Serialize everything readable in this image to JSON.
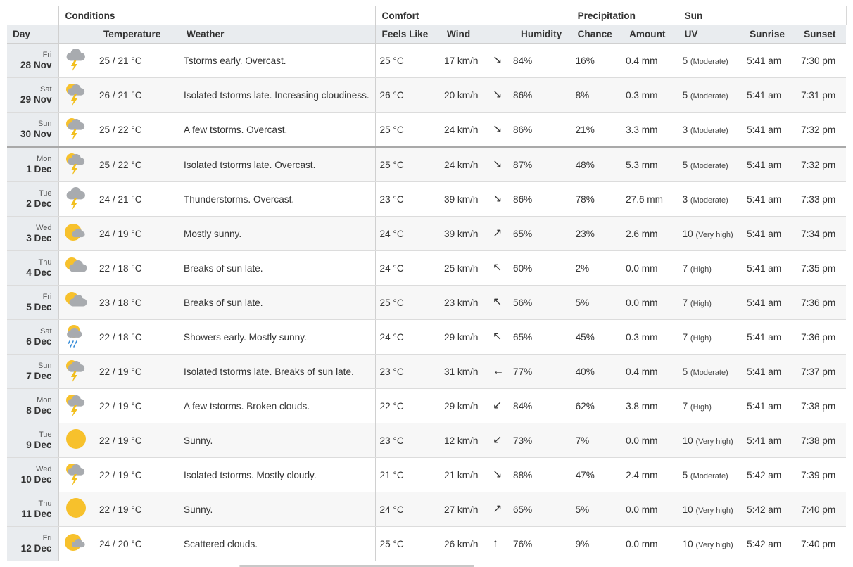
{
  "headers": {
    "day": "Day",
    "conditions": "Conditions",
    "comfort": "Comfort",
    "precipitation": "Precipitation",
    "sun": "Sun",
    "temperature": "Temperature",
    "weather": "Weather",
    "feels_like": "Feels Like",
    "wind": "Wind",
    "humidity": "Humidity",
    "chance": "Chance",
    "amount": "Amount",
    "uv": "UV",
    "sunrise": "Sunrise",
    "sunset": "Sunset"
  },
  "colors": {
    "sun": "#f7c12c",
    "cloud": "#a8abaf",
    "bolt": "#f2bf1e",
    "rain": "#3b8fd8"
  },
  "rows": [
    {
      "dayname": "Fri",
      "date": "28 Nov",
      "icon": "thunderstorm-cloud-icon",
      "temp": "25 / 21 °C",
      "weather": "Tstorms early. Overcast.",
      "feels": "25 °C",
      "wind": "17 km/h",
      "wind_dir": "↘",
      "humidity": "84%",
      "chance": "16%",
      "amount": "0.4 mm",
      "uv": "5",
      "uv_cat": "(Moderate)",
      "sunrise": "5:41 am",
      "sunset": "7:30 pm"
    },
    {
      "dayname": "Sat",
      "date": "29 Nov",
      "icon": "sun-thunderstorm-icon",
      "temp": "26 / 21 °C",
      "weather": "Isolated tstorms late. Increasing cloudiness.",
      "feels": "26 °C",
      "wind": "20 km/h",
      "wind_dir": "↘",
      "humidity": "86%",
      "chance": "8%",
      "amount": "0.3 mm",
      "uv": "5",
      "uv_cat": "(Moderate)",
      "sunrise": "5:41 am",
      "sunset": "7:31 pm"
    },
    {
      "dayname": "Sun",
      "date": "30 Nov",
      "icon": "sun-thunderstorm-icon",
      "temp": "25 / 22 °C",
      "weather": "A few tstorms. Overcast.",
      "feels": "25 °C",
      "wind": "24 km/h",
      "wind_dir": "↘",
      "humidity": "86%",
      "chance": "21%",
      "amount": "3.3 mm",
      "uv": "3",
      "uv_cat": "(Moderate)",
      "sunrise": "5:41 am",
      "sunset": "7:32 pm"
    },
    {
      "dayname": "Mon",
      "date": "1 Dec",
      "icon": "sun-thunderstorm-icon",
      "temp": "25 / 22 °C",
      "weather": "Isolated tstorms late. Overcast.",
      "feels": "25 °C",
      "wind": "24 km/h",
      "wind_dir": "↘",
      "humidity": "87%",
      "chance": "48%",
      "amount": "5.3 mm",
      "uv": "5",
      "uv_cat": "(Moderate)",
      "sunrise": "5:41 am",
      "sunset": "7:32 pm"
    },
    {
      "dayname": "Tue",
      "date": "2 Dec",
      "icon": "thunderstorm-cloud-icon",
      "temp": "24 / 21 °C",
      "weather": "Thunderstorms. Overcast.",
      "feels": "23 °C",
      "wind": "39 km/h",
      "wind_dir": "↘",
      "humidity": "86%",
      "chance": "78%",
      "amount": "27.6 mm",
      "uv": "3",
      "uv_cat": "(Moderate)",
      "sunrise": "5:41 am",
      "sunset": "7:33 pm"
    },
    {
      "dayname": "Wed",
      "date": "3 Dec",
      "icon": "mostly-sunny-icon",
      "temp": "24 / 19 °C",
      "weather": "Mostly sunny.",
      "feels": "24 °C",
      "wind": "39 km/h",
      "wind_dir": "↗",
      "humidity": "65%",
      "chance": "23%",
      "amount": "2.6 mm",
      "uv": "10",
      "uv_cat": "(Very high)",
      "sunrise": "5:41 am",
      "sunset": "7:34 pm"
    },
    {
      "dayname": "Thu",
      "date": "4 Dec",
      "icon": "partly-cloudy-icon",
      "temp": "22 / 18 °C",
      "weather": "Breaks of sun late.",
      "feels": "24 °C",
      "wind": "25 km/h",
      "wind_dir": "↖",
      "humidity": "60%",
      "chance": "2%",
      "amount": "0.0 mm",
      "uv": "7",
      "uv_cat": "(High)",
      "sunrise": "5:41 am",
      "sunset": "7:35 pm"
    },
    {
      "dayname": "Fri",
      "date": "5 Dec",
      "icon": "partly-cloudy-icon",
      "temp": "23 / 18 °C",
      "weather": "Breaks of sun late.",
      "feels": "25 °C",
      "wind": "23 km/h",
      "wind_dir": "↖",
      "humidity": "56%",
      "chance": "5%",
      "amount": "0.0 mm",
      "uv": "7",
      "uv_cat": "(High)",
      "sunrise": "5:41 am",
      "sunset": "7:36 pm"
    },
    {
      "dayname": "Sat",
      "date": "6 Dec",
      "icon": "sun-showers-icon",
      "temp": "22 / 18 °C",
      "weather": "Showers early. Mostly sunny.",
      "feels": "24 °C",
      "wind": "29 km/h",
      "wind_dir": "↖",
      "humidity": "65%",
      "chance": "45%",
      "amount": "0.3 mm",
      "uv": "7",
      "uv_cat": "(High)",
      "sunrise": "5:41 am",
      "sunset": "7:36 pm"
    },
    {
      "dayname": "Sun",
      "date": "7 Dec",
      "icon": "sun-thunderstorm-icon",
      "temp": "22 / 19 °C",
      "weather": "Isolated tstorms late. Breaks of sun late.",
      "feels": "23 °C",
      "wind": "31 km/h",
      "wind_dir": "←",
      "humidity": "77%",
      "chance": "40%",
      "amount": "0.4 mm",
      "uv": "5",
      "uv_cat": "(Moderate)",
      "sunrise": "5:41 am",
      "sunset": "7:37 pm"
    },
    {
      "dayname": "Mon",
      "date": "8 Dec",
      "icon": "sun-thunderstorm-icon",
      "temp": "22 / 19 °C",
      "weather": "A few tstorms. Broken clouds.",
      "feels": "22 °C",
      "wind": "29 km/h",
      "wind_dir": "↙",
      "humidity": "84%",
      "chance": "62%",
      "amount": "3.8 mm",
      "uv": "7",
      "uv_cat": "(High)",
      "sunrise": "5:41 am",
      "sunset": "7:38 pm"
    },
    {
      "dayname": "Tue",
      "date": "9 Dec",
      "icon": "sun-icon",
      "temp": "22 / 19 °C",
      "weather": "Sunny.",
      "feels": "23 °C",
      "wind": "12 km/h",
      "wind_dir": "↙",
      "humidity": "73%",
      "chance": "7%",
      "amount": "0.0 mm",
      "uv": "10",
      "uv_cat": "(Very high)",
      "sunrise": "5:41 am",
      "sunset": "7:38 pm"
    },
    {
      "dayname": "Wed",
      "date": "10 Dec",
      "icon": "sun-thunderstorm-icon",
      "temp": "22 / 19 °C",
      "weather": "Isolated tstorms. Mostly cloudy.",
      "feels": "21 °C",
      "wind": "21 km/h",
      "wind_dir": "↘",
      "humidity": "88%",
      "chance": "47%",
      "amount": "2.4 mm",
      "uv": "5",
      "uv_cat": "(Moderate)",
      "sunrise": "5:42 am",
      "sunset": "7:39 pm"
    },
    {
      "dayname": "Thu",
      "date": "11 Dec",
      "icon": "sun-icon",
      "temp": "22 / 19 °C",
      "weather": "Sunny.",
      "feels": "24 °C",
      "wind": "27 km/h",
      "wind_dir": "↗",
      "humidity": "65%",
      "chance": "5%",
      "amount": "0.0 mm",
      "uv": "10",
      "uv_cat": "(Very high)",
      "sunrise": "5:42 am",
      "sunset": "7:40 pm"
    },
    {
      "dayname": "Fri",
      "date": "12 Dec",
      "icon": "mostly-sunny-icon",
      "temp": "24 / 20 °C",
      "weather": "Scattered clouds.",
      "feels": "25 °C",
      "wind": "26 km/h",
      "wind_dir": "↑",
      "humidity": "76%",
      "chance": "9%",
      "amount": "0.0 mm",
      "uv": "10",
      "uv_cat": "(Very high)",
      "sunrise": "5:42 am",
      "sunset": "7:40 pm"
    }
  ]
}
